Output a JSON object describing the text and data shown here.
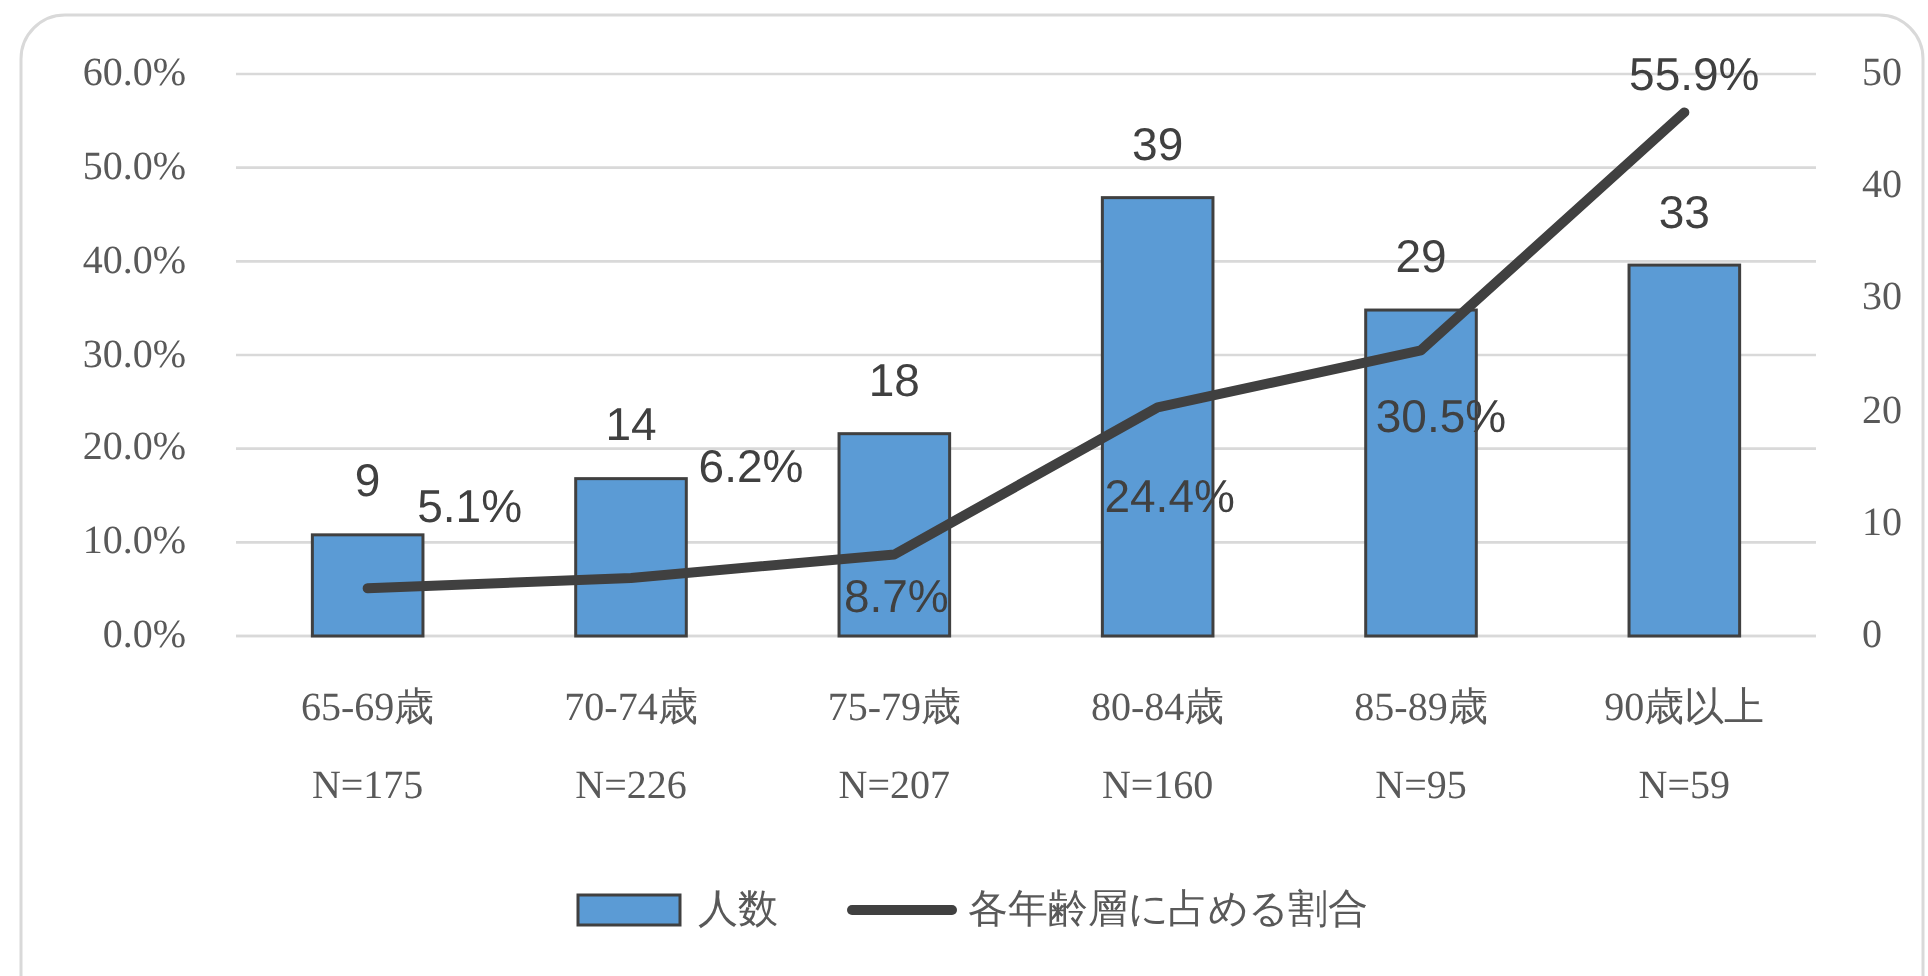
{
  "chart_data": {
    "type": "bar",
    "categories": [
      "65-69歳\nN=175",
      "70-74歳\nN=226",
      "75-79歳\nN=207",
      "80-84歳\nN=160",
      "85-89歳\nN=95",
      "90歳以上\nN=59"
    ],
    "series": [
      {
        "name": "人数",
        "color": "#5b9bd5",
        "axis": "y2",
        "values": [
          9,
          14,
          18,
          39,
          29,
          33
        ],
        "value_labels": [
          "9",
          "14",
          "18",
          "39",
          "29",
          "33"
        ]
      },
      {
        "name": "各年齢層に占める割合",
        "type": "line",
        "color": "#404040",
        "values": [
          5.1,
          6.2,
          8.7,
          24.4,
          30.5,
          55.9
        ],
        "value_labels": [
          "5.1%",
          "6.2%",
          "8.7%",
          "24.4%",
          "30.5%",
          "55.9%"
        ]
      }
    ],
    "ylim": [
      0,
      60
    ],
    "yticks": [
      {
        "value": 0,
        "label": "0.0%"
      },
      {
        "value": 10,
        "label": "10.0%"
      },
      {
        "value": 20,
        "label": "20.0%"
      },
      {
        "value": 30,
        "label": "30.0%"
      },
      {
        "value": 40,
        "label": "40.0%"
      },
      {
        "value": 50,
        "label": "50.0%"
      },
      {
        "value": 60,
        "label": "60.0%"
      }
    ],
    "y2lim": [
      0,
      50
    ],
    "y2ticks": [
      0,
      10,
      20,
      30,
      40,
      50
    ],
    "grid": "y",
    "legend": "bottom"
  }
}
